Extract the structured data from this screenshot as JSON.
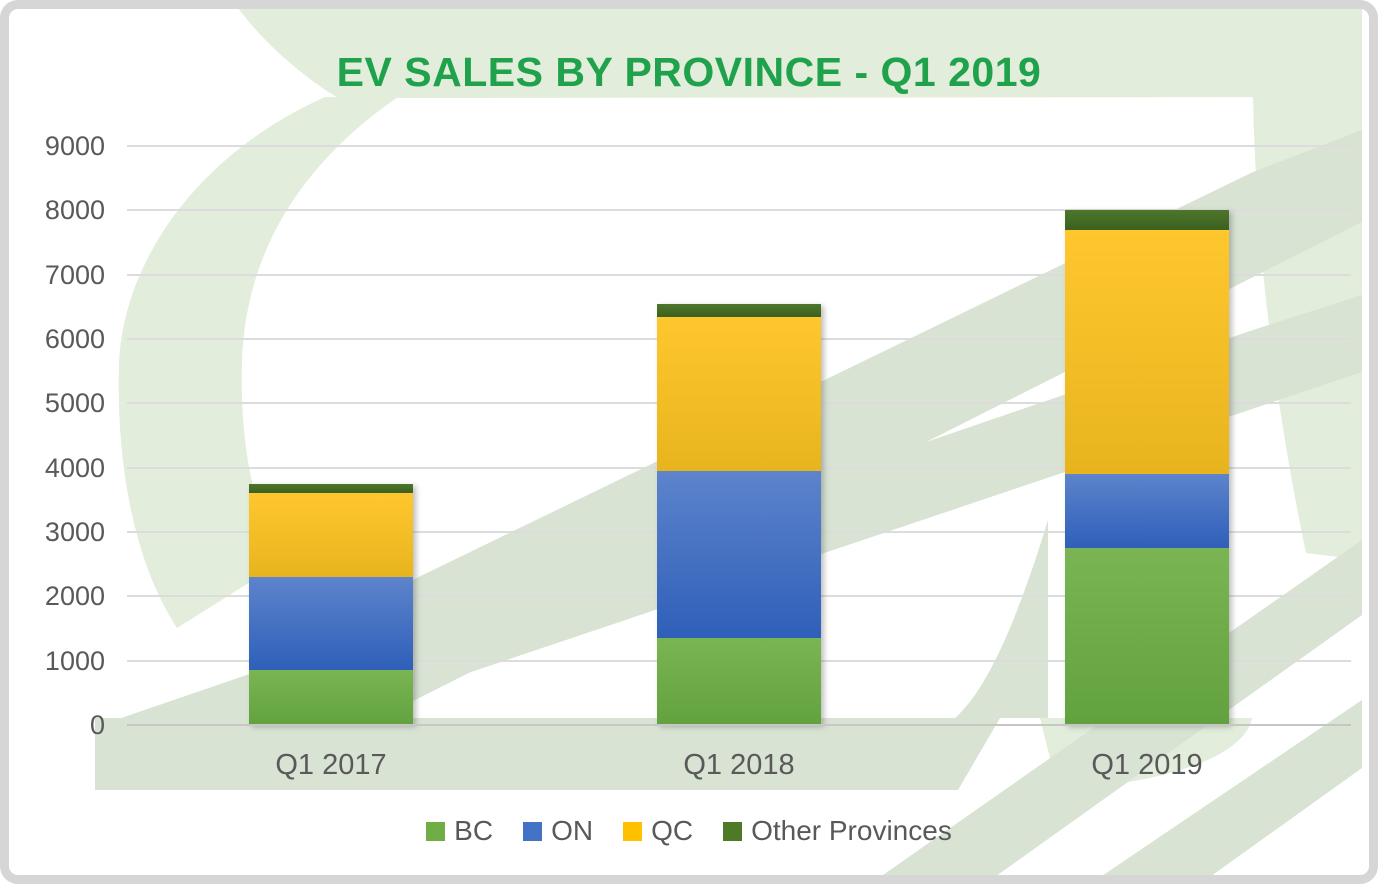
{
  "window": {
    "frame_border_color": "#d6d6d6",
    "background_color": "#ffffff"
  },
  "colors": {
    "title_green": "#1fa24b",
    "text_gray": "#595959",
    "gridline_gray": "#dcdcdc",
    "watermark_light_green": "#e2eddb",
    "watermark_gray_green": "#d8e3d4"
  },
  "chart_data": {
    "type": "bar",
    "stacked": true,
    "title": "EV SALES BY PROVINCE - Q1 2019",
    "categories": [
      "Q1 2017",
      "Q1 2018",
      "Q1 2019"
    ],
    "series": [
      {
        "name": "BC",
        "color": "#70AD47",
        "color_top": "#7ab553",
        "color_bottom": "#62a23e",
        "values": [
          850,
          1350,
          2750
        ]
      },
      {
        "name": "ON",
        "color": "#4472C4",
        "color_top": "#5d84cc",
        "color_bottom": "#2f5fb9",
        "values": [
          1450,
          2600,
          1150
        ]
      },
      {
        "name": "QC",
        "color": "#FFC000",
        "color_top": "#ffc72e",
        "color_bottom": "#e8b41e",
        "values": [
          1300,
          2400,
          3800
        ]
      },
      {
        "name": "Other Provinces",
        "color": "#4E7A27",
        "color_top": "#4d772b",
        "color_bottom": "#3c601f",
        "values": [
          150,
          200,
          300
        ]
      }
    ],
    "totals": [
      3750,
      6550,
      8000
    ],
    "xlabel": "",
    "ylabel": "",
    "ylim": [
      0,
      9000
    ],
    "yticks": [
      0,
      1000,
      2000,
      3000,
      4000,
      5000,
      6000,
      7000,
      8000,
      9000
    ],
    "grid": "horizontal",
    "legend_position": "bottom"
  }
}
